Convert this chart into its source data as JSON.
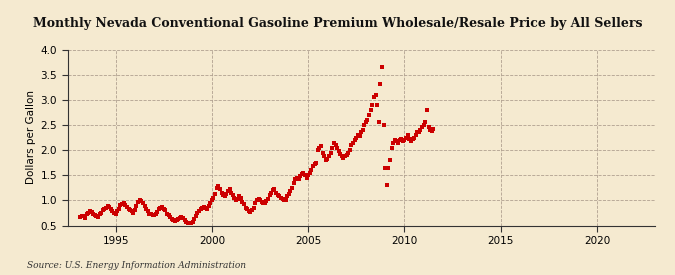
{
  "title": "Monthly Nevada Conventional Gasoline Premium Wholesale/Resale Price by All Sellers",
  "ylabel": "Dollars per Gallon",
  "source": "Source: U.S. Energy Information Administration",
  "background_color": "#f5ead0",
  "marker_color": "#cc0000",
  "xlim": [
    1992.5,
    2023.0
  ],
  "ylim": [
    0.5,
    4.0
  ],
  "yticks": [
    0.5,
    1.0,
    1.5,
    2.0,
    2.5,
    3.0,
    3.5,
    4.0
  ],
  "xticks": [
    1995,
    2000,
    2005,
    2010,
    2015,
    2020
  ],
  "data": [
    [
      1993.17,
      0.67
    ],
    [
      1993.25,
      0.68
    ],
    [
      1993.33,
      0.68
    ],
    [
      1993.42,
      0.65
    ],
    [
      1993.5,
      0.72
    ],
    [
      1993.58,
      0.75
    ],
    [
      1993.67,
      0.78
    ],
    [
      1993.75,
      0.77
    ],
    [
      1993.83,
      0.72
    ],
    [
      1993.92,
      0.7
    ],
    [
      1994.0,
      0.68
    ],
    [
      1994.08,
      0.67
    ],
    [
      1994.17,
      0.72
    ],
    [
      1994.25,
      0.75
    ],
    [
      1994.33,
      0.8
    ],
    [
      1994.42,
      0.83
    ],
    [
      1994.5,
      0.85
    ],
    [
      1994.58,
      0.88
    ],
    [
      1994.67,
      0.87
    ],
    [
      1994.75,
      0.82
    ],
    [
      1994.83,
      0.78
    ],
    [
      1994.92,
      0.75
    ],
    [
      1995.0,
      0.73
    ],
    [
      1995.08,
      0.78
    ],
    [
      1995.17,
      0.82
    ],
    [
      1995.25,
      0.9
    ],
    [
      1995.33,
      0.92
    ],
    [
      1995.42,
      0.95
    ],
    [
      1995.5,
      0.9
    ],
    [
      1995.58,
      0.87
    ],
    [
      1995.67,
      0.83
    ],
    [
      1995.75,
      0.8
    ],
    [
      1995.83,
      0.78
    ],
    [
      1995.92,
      0.75
    ],
    [
      1996.0,
      0.8
    ],
    [
      1996.08,
      0.88
    ],
    [
      1996.17,
      0.97
    ],
    [
      1996.25,
      1.0
    ],
    [
      1996.33,
      0.98
    ],
    [
      1996.42,
      0.95
    ],
    [
      1996.5,
      0.88
    ],
    [
      1996.58,
      0.83
    ],
    [
      1996.67,
      0.78
    ],
    [
      1996.75,
      0.73
    ],
    [
      1996.83,
      0.72
    ],
    [
      1996.92,
      0.7
    ],
    [
      1997.0,
      0.7
    ],
    [
      1997.08,
      0.73
    ],
    [
      1997.17,
      0.77
    ],
    [
      1997.25,
      0.82
    ],
    [
      1997.33,
      0.85
    ],
    [
      1997.42,
      0.87
    ],
    [
      1997.5,
      0.83
    ],
    [
      1997.58,
      0.8
    ],
    [
      1997.67,
      0.73
    ],
    [
      1997.75,
      0.7
    ],
    [
      1997.83,
      0.67
    ],
    [
      1997.92,
      0.63
    ],
    [
      1998.0,
      0.6
    ],
    [
      1998.08,
      0.58
    ],
    [
      1998.17,
      0.6
    ],
    [
      1998.25,
      0.63
    ],
    [
      1998.33,
      0.65
    ],
    [
      1998.42,
      0.67
    ],
    [
      1998.5,
      0.65
    ],
    [
      1998.58,
      0.6
    ],
    [
      1998.67,
      0.57
    ],
    [
      1998.75,
      0.55
    ],
    [
      1998.83,
      0.55
    ],
    [
      1998.92,
      0.55
    ],
    [
      1999.0,
      0.57
    ],
    [
      1999.08,
      0.63
    ],
    [
      1999.17,
      0.68
    ],
    [
      1999.25,
      0.75
    ],
    [
      1999.33,
      0.78
    ],
    [
      1999.42,
      0.82
    ],
    [
      1999.5,
      0.85
    ],
    [
      1999.58,
      0.87
    ],
    [
      1999.67,
      0.85
    ],
    [
      1999.75,
      0.82
    ],
    [
      1999.83,
      0.88
    ],
    [
      1999.92,
      0.95
    ],
    [
      2000.0,
      1.0
    ],
    [
      2000.08,
      1.05
    ],
    [
      2000.17,
      1.12
    ],
    [
      2000.25,
      1.25
    ],
    [
      2000.33,
      1.28
    ],
    [
      2000.42,
      1.22
    ],
    [
      2000.5,
      1.15
    ],
    [
      2000.58,
      1.1
    ],
    [
      2000.67,
      1.08
    ],
    [
      2000.75,
      1.12
    ],
    [
      2000.83,
      1.18
    ],
    [
      2000.92,
      1.22
    ],
    [
      2001.0,
      1.15
    ],
    [
      2001.08,
      1.1
    ],
    [
      2001.17,
      1.05
    ],
    [
      2001.25,
      1.0
    ],
    [
      2001.33,
      1.02
    ],
    [
      2001.42,
      1.08
    ],
    [
      2001.5,
      1.05
    ],
    [
      2001.58,
      0.97
    ],
    [
      2001.67,
      0.92
    ],
    [
      2001.75,
      0.85
    ],
    [
      2001.83,
      0.82
    ],
    [
      2001.92,
      0.78
    ],
    [
      2002.0,
      0.77
    ],
    [
      2002.08,
      0.8
    ],
    [
      2002.17,
      0.85
    ],
    [
      2002.25,
      0.95
    ],
    [
      2002.33,
      1.0
    ],
    [
      2002.42,
      1.02
    ],
    [
      2002.5,
      1.0
    ],
    [
      2002.58,
      0.97
    ],
    [
      2002.67,
      0.95
    ],
    [
      2002.75,
      0.95
    ],
    [
      2002.83,
      0.98
    ],
    [
      2002.92,
      1.03
    ],
    [
      2003.0,
      1.1
    ],
    [
      2003.08,
      1.15
    ],
    [
      2003.17,
      1.2
    ],
    [
      2003.25,
      1.22
    ],
    [
      2003.33,
      1.15
    ],
    [
      2003.42,
      1.1
    ],
    [
      2003.5,
      1.08
    ],
    [
      2003.58,
      1.05
    ],
    [
      2003.67,
      1.02
    ],
    [
      2003.75,
      1.0
    ],
    [
      2003.83,
      1.0
    ],
    [
      2003.92,
      1.08
    ],
    [
      2004.0,
      1.12
    ],
    [
      2004.08,
      1.18
    ],
    [
      2004.17,
      1.25
    ],
    [
      2004.25,
      1.35
    ],
    [
      2004.33,
      1.42
    ],
    [
      2004.42,
      1.45
    ],
    [
      2004.5,
      1.42
    ],
    [
      2004.58,
      1.48
    ],
    [
      2004.67,
      1.52
    ],
    [
      2004.75,
      1.55
    ],
    [
      2004.83,
      1.5
    ],
    [
      2004.92,
      1.45
    ],
    [
      2005.0,
      1.5
    ],
    [
      2005.08,
      1.55
    ],
    [
      2005.17,
      1.6
    ],
    [
      2005.25,
      1.68
    ],
    [
      2005.33,
      1.72
    ],
    [
      2005.42,
      1.75
    ],
    [
      2005.5,
      2.0
    ],
    [
      2005.58,
      2.05
    ],
    [
      2005.67,
      2.08
    ],
    [
      2005.75,
      1.95
    ],
    [
      2005.83,
      1.88
    ],
    [
      2005.92,
      1.8
    ],
    [
      2006.0,
      1.82
    ],
    [
      2006.08,
      1.88
    ],
    [
      2006.17,
      1.95
    ],
    [
      2006.25,
      2.05
    ],
    [
      2006.33,
      2.15
    ],
    [
      2006.42,
      2.1
    ],
    [
      2006.5,
      2.05
    ],
    [
      2006.58,
      1.98
    ],
    [
      2006.67,
      1.92
    ],
    [
      2006.75,
      1.88
    ],
    [
      2006.83,
      1.85
    ],
    [
      2006.92,
      1.88
    ],
    [
      2007.0,
      1.9
    ],
    [
      2007.08,
      1.95
    ],
    [
      2007.17,
      2.0
    ],
    [
      2007.25,
      2.1
    ],
    [
      2007.33,
      2.15
    ],
    [
      2007.42,
      2.2
    ],
    [
      2007.5,
      2.25
    ],
    [
      2007.58,
      2.3
    ],
    [
      2007.67,
      2.28
    ],
    [
      2007.75,
      2.35
    ],
    [
      2007.83,
      2.4
    ],
    [
      2007.92,
      2.5
    ],
    [
      2008.0,
      2.55
    ],
    [
      2008.08,
      2.6
    ],
    [
      2008.17,
      2.7
    ],
    [
      2008.25,
      2.8
    ],
    [
      2008.33,
      2.9
    ],
    [
      2008.42,
      3.05
    ],
    [
      2008.5,
      3.1
    ],
    [
      2008.58,
      2.9
    ],
    [
      2008.67,
      2.55
    ],
    [
      2008.75,
      3.32
    ],
    [
      2008.83,
      3.65
    ],
    [
      2008.92,
      2.5
    ],
    [
      2009.0,
      1.65
    ],
    [
      2009.08,
      1.3
    ],
    [
      2009.17,
      1.65
    ],
    [
      2009.25,
      1.8
    ],
    [
      2009.33,
      2.05
    ],
    [
      2009.42,
      2.15
    ],
    [
      2009.5,
      2.2
    ],
    [
      2009.58,
      2.18
    ],
    [
      2009.67,
      2.15
    ],
    [
      2009.75,
      2.2
    ],
    [
      2009.83,
      2.22
    ],
    [
      2009.92,
      2.18
    ],
    [
      2010.0,
      2.2
    ],
    [
      2010.08,
      2.25
    ],
    [
      2010.17,
      2.3
    ],
    [
      2010.25,
      2.22
    ],
    [
      2010.33,
      2.18
    ],
    [
      2010.42,
      2.22
    ],
    [
      2010.5,
      2.25
    ],
    [
      2010.58,
      2.3
    ],
    [
      2010.67,
      2.35
    ],
    [
      2010.75,
      2.35
    ],
    [
      2010.83,
      2.4
    ],
    [
      2010.92,
      2.45
    ],
    [
      2011.0,
      2.5
    ],
    [
      2011.08,
      2.55
    ],
    [
      2011.17,
      2.8
    ],
    [
      2011.25,
      2.45
    ],
    [
      2011.33,
      2.4
    ],
    [
      2011.42,
      2.38
    ],
    [
      2011.5,
      2.42
    ]
  ]
}
